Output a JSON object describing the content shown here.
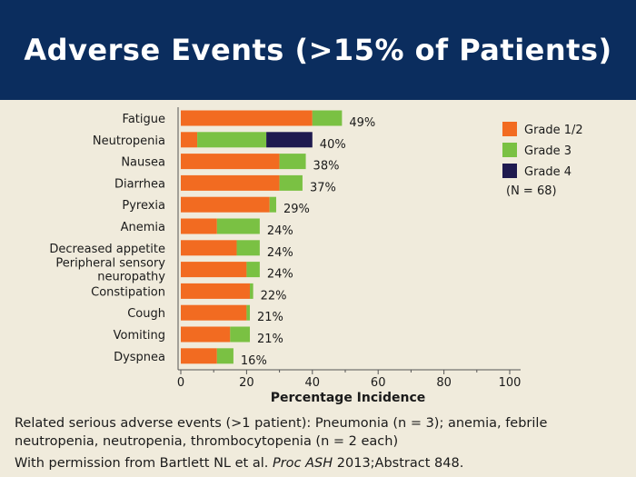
{
  "slide": {
    "title": "Adverse Events (>15% of Patients)",
    "footnote": "Related serious adverse events (>1 patient): Pneumonia (n = 3); anemia, febrile neutropenia, neutropenia, thrombocytopenia (n = 2 each)",
    "citation": {
      "prefix": "With permission from Bartlett NL et al. ",
      "journal": "Proc ASH",
      "suffix": " 2013;Abstract 848."
    }
  },
  "chart_data": {
    "type": "bar",
    "orientation": "horizontal",
    "stacked": true,
    "categories": [
      "Fatigue",
      "Neutropenia",
      "Nausea",
      "Diarrhea",
      "Pyrexia",
      "Anemia",
      "Decreased appetite",
      "Peripheral sensory neuropathy",
      "Constipation",
      "Cough",
      "Vomiting",
      "Dyspnea"
    ],
    "category_lines": [
      [
        "Fatigue"
      ],
      [
        "Neutropenia"
      ],
      [
        "Nausea"
      ],
      [
        "Diarrhea"
      ],
      [
        "Pyrexia"
      ],
      [
        "Anemia"
      ],
      [
        "Decreased appetite"
      ],
      [
        "Peripheral sensory",
        "neuropathy"
      ],
      [
        "Constipation"
      ],
      [
        "Cough"
      ],
      [
        "Vomiting"
      ],
      [
        "Dyspnea"
      ]
    ],
    "series": [
      {
        "name": "Grade 1/2",
        "color": "#f26b21",
        "values": [
          40,
          5,
          30,
          30,
          27,
          11,
          17,
          20,
          21,
          20,
          15,
          11
        ]
      },
      {
        "name": "Grade 3",
        "color": "#7ac143",
        "values": [
          9,
          21,
          8,
          7,
          2,
          13,
          7,
          4,
          1,
          1,
          6,
          5
        ]
      },
      {
        "name": "Grade 4",
        "color": "#1f1a4f",
        "values": [
          0,
          14,
          0,
          0,
          0,
          0,
          0,
          0,
          0,
          0,
          0,
          0
        ]
      }
    ],
    "totals": [
      "49%",
      "40%",
      "38%",
      "37%",
      "29%",
      "24%",
      "24%",
      "24%",
      "22%",
      "21%",
      "21%",
      "16%"
    ],
    "xlabel": "Percentage Incidence",
    "ylabel": "",
    "xlim": [
      0,
      100
    ],
    "xticks": [
      0,
      20,
      40,
      60,
      80,
      100
    ],
    "legend_note": "(N = 68)",
    "legend_position": "top-right",
    "grid": false
  }
}
